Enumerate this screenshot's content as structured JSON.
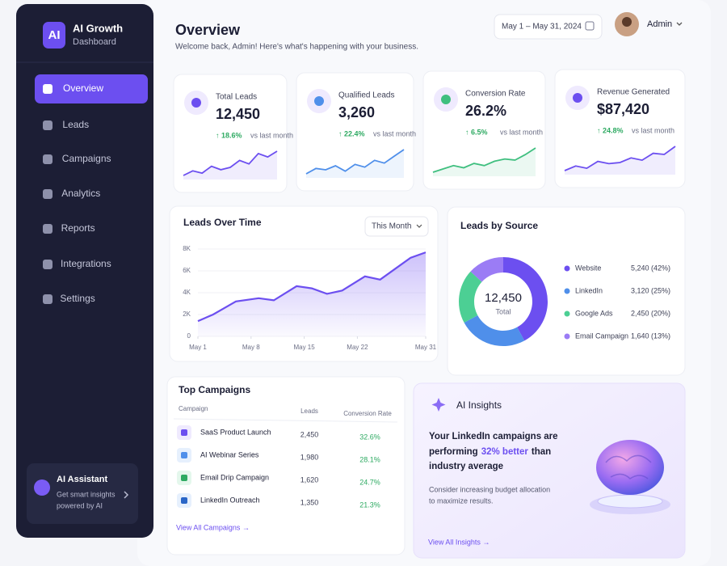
{
  "sidebar": {
    "logo": "AI",
    "brand": "AI Growth",
    "brand_sub": "Dashboard",
    "nav": [
      "Overview",
      "Leads",
      "Campaigns",
      "Analytics",
      "Reports",
      "Integrations",
      "Settings"
    ],
    "assistant": {
      "title": "AI Assistant",
      "lines": [
        "Get smart insights",
        "powered by AI"
      ]
    }
  },
  "header": {
    "title": "Overview",
    "subtitle": "Welcome back, Admin! Here's what's happening with your business.",
    "date_range": "May 1 – May 31, 2024",
    "user": "Admin"
  },
  "kpis": [
    {
      "label": "Total Leads",
      "value": "12,450",
      "change": "↑ 18.6%",
      "change_note": "vs last month",
      "color": "#6c4ff0",
      "trend": [
        20,
        28,
        24,
        36,
        30,
        34,
        46,
        40,
        58,
        52,
        62
      ]
    },
    {
      "label": "Qualified Leads",
      "value": "3,260",
      "change": "↑ 22.4%",
      "change_note": "vs last month",
      "color": "#4f8fea",
      "trend": [
        24,
        32,
        30,
        36,
        28,
        38,
        34,
        44,
        40,
        50,
        60
      ]
    },
    {
      "label": "Conversion Rate",
      "value": "26.2%",
      "change": "↑ 6.5%",
      "change_note": "vs last month",
      "color": "#3fbf7f",
      "trend": [
        18,
        24,
        30,
        26,
        34,
        30,
        38,
        42,
        40,
        50,
        62
      ]
    },
    {
      "label": "Revenue Generated",
      "value": "$87,420",
      "change": "↑ 24.8%",
      "change_note": "vs last month",
      "color": "#6c4ff0",
      "trend": [
        22,
        30,
        26,
        38,
        34,
        36,
        44,
        40,
        52,
        50,
        64
      ]
    }
  ],
  "leads_over_time": {
    "type": "line",
    "title": "Leads Over Time",
    "filter": "This Month",
    "x": [
      1,
      3,
      6,
      9,
      11,
      14,
      16,
      18,
      20,
      23,
      25,
      27,
      29,
      31
    ],
    "values": [
      1400,
      2000,
      3200,
      3500,
      3300,
      4600,
      4400,
      3900,
      4200,
      5500,
      5200,
      6200,
      7200,
      7700
    ],
    "xlim": [
      1,
      31
    ],
    "xticks": [
      {
        "value": 1,
        "label": "May 1"
      },
      {
        "value": 8,
        "label": "May 8"
      },
      {
        "value": 15,
        "label": "May 15"
      },
      {
        "value": 22,
        "label": "May 22"
      },
      {
        "value": 31,
        "label": "May 31"
      }
    ],
    "ylim": [
      0,
      8000
    ],
    "yticks": [
      0,
      {
        "value": 2000,
        "label": "2K"
      },
      {
        "value": 4000,
        "label": "4K"
      },
      {
        "value": 6000,
        "label": "6K"
      },
      {
        "value": 8000,
        "label": "8K"
      }
    ],
    "color": "#6c4ff0"
  },
  "leads_by_source": {
    "type": "pie",
    "title": "Leads by Source",
    "center_value": "12,450",
    "center_label": "Total",
    "categories": [
      "Website",
      "LinkedIn",
      "Google Ads",
      "Email Campaign"
    ],
    "values": [
      5240,
      3120,
      2450,
      1640
    ],
    "value_labels": [
      "5,240 (42%)",
      "3,120 (25%)",
      "2,450 (20%)",
      "1,640 (13%)"
    ],
    "colors": [
      "#6c4ff0",
      "#4f8fea",
      "#4ccf94",
      "#9b7cf5"
    ]
  },
  "top_campaigns": {
    "title": "Top Campaigns",
    "columns": [
      "Campaign",
      "Leads",
      "Conversion Rate"
    ],
    "rows": [
      [
        "SaaS Product Launch",
        "2,450",
        "32.6%"
      ],
      [
        "AI Webinar Series",
        "1,980",
        "28.1%"
      ],
      [
        "Email Drip Campaign",
        "1,620",
        "24.7%"
      ],
      [
        "LinkedIn Outreach",
        "1,350",
        "21.3%"
      ]
    ],
    "link": "View All Campaigns →"
  },
  "ai_insights": {
    "title": "AI Insights",
    "line1": "Your LinkedIn campaigns are",
    "line2_before": "performing",
    "highlight": "32% better",
    "line2_after": "than",
    "line3": "industry average",
    "advice": [
      "Consider increasing budget allocation",
      "to maximize results."
    ],
    "link": "View All Insights →"
  }
}
